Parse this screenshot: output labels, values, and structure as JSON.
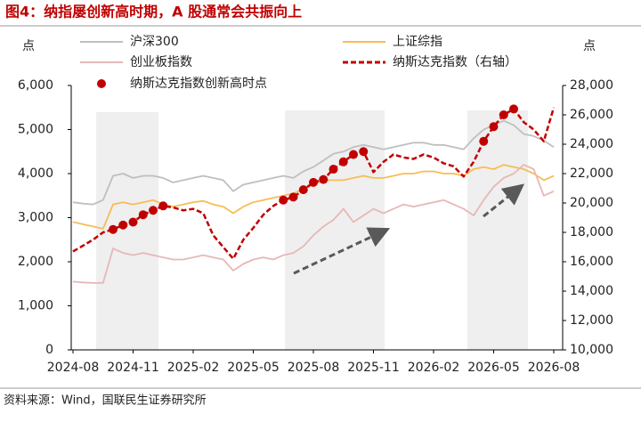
{
  "chart_data": {
    "type": "line",
    "title": "图4：纳指屡创新高时期，A 股通常会共振向上",
    "source": "资料来源：Wind，国联民生证券研究所",
    "y_label": "点",
    "y2_label": "点",
    "categories": [
      "2024-08",
      null,
      null,
      null,
      null,
      null,
      "2024-11",
      null,
      null,
      null,
      null,
      null,
      "2025-02",
      null,
      null,
      null,
      null,
      null,
      "2025-05",
      null,
      null,
      null,
      null,
      null,
      "2025-08",
      null,
      null,
      null,
      null,
      null,
      "2025-11",
      null,
      null,
      null,
      null,
      null,
      "2026-02",
      null,
      null,
      null,
      null,
      null,
      "2026-05",
      null,
      null,
      null,
      null,
      null,
      "2026-08"
    ],
    "ylim": [
      0,
      6000
    ],
    "yticks": [
      0,
      {
        "value": 1000,
        "label": "1,000"
      },
      {
        "value": 2000,
        "label": "2,000"
      },
      {
        "value": 3000,
        "label": "3,000"
      },
      {
        "value": 4000,
        "label": "4,000"
      },
      {
        "value": 5000,
        "label": "5,000"
      },
      {
        "value": 6000,
        "label": "6,000"
      }
    ],
    "y2lim": [
      10000,
      28000
    ],
    "y2ticks": [
      {
        "value": 10000,
        "label": "10,000"
      },
      {
        "value": 12000,
        "label": "12,000"
      },
      {
        "value": 14000,
        "label": "14,000"
      },
      {
        "value": 16000,
        "label": "16,000"
      },
      {
        "value": 18000,
        "label": "18,000"
      },
      {
        "value": 20000,
        "label": "20,000"
      },
      {
        "value": 22000,
        "label": "22,000"
      },
      {
        "value": 24000,
        "label": "24,000"
      },
      {
        "value": 26000,
        "label": "26,000"
      },
      {
        "value": 28000,
        "label": "28,000"
      }
    ],
    "series": [
      {
        "name": "沪深300",
        "color": "#bfbfbf",
        "values": [
          3350,
          3320,
          3300,
          3400,
          3950,
          4000,
          3900,
          3950,
          3950,
          3900,
          3800,
          3850,
          3900,
          3950,
          3900,
          3850,
          3600,
          3750,
          3800,
          3850,
          3900,
          3950,
          3900,
          4050,
          4150,
          4300,
          4450,
          4500,
          4600,
          4650,
          4600,
          4550,
          4600,
          4650,
          4700,
          4700,
          4650,
          4650,
          4600,
          4550,
          4800,
          5000,
          5100,
          5200,
          5100,
          4900,
          4850,
          4750,
          4600
        ]
      },
      {
        "name": "上证综指",
        "color": "#f7bd56",
        "values": [
          2900,
          2850,
          2800,
          2750,
          3300,
          3350,
          3300,
          3350,
          3400,
          3300,
          3250,
          3300,
          3350,
          3380,
          3300,
          3250,
          3100,
          3250,
          3350,
          3400,
          3450,
          3500,
          3550,
          3650,
          3750,
          3850,
          3850,
          3850,
          3900,
          3950,
          3900,
          3900,
          3950,
          4000,
          4000,
          4050,
          4050,
          4000,
          4000,
          3950,
          4100,
          4150,
          4100,
          4200,
          4150,
          4100,
          4000,
          3850,
          3950
        ]
      },
      {
        "name": "创业板指数",
        "color": "#e6b8b7",
        "values": [
          1550,
          1530,
          1520,
          1520,
          2300,
          2200,
          2150,
          2200,
          2150,
          2100,
          2050,
          2050,
          2100,
          2150,
          2100,
          2050,
          1800,
          1950,
          2050,
          2100,
          2050,
          2150,
          2200,
          2350,
          2600,
          2800,
          2950,
          3200,
          2900,
          3050,
          3200,
          3100,
          3200,
          3300,
          3250,
          3300,
          3350,
          3400,
          3300,
          3200,
          3050,
          3400,
          3700,
          3900,
          4000,
          4200,
          4100,
          3500,
          3600
        ]
      },
      {
        "name": "纳斯达克指数（右轴）",
        "color": "#c00000",
        "axis": "y2",
        "dash": true,
        "values": [
          16700,
          17100,
          17500,
          18000,
          18200,
          18500,
          18700,
          19200,
          19500,
          19800,
          19700,
          19500,
          19600,
          19300,
          17800,
          17000,
          16200,
          17500,
          18300,
          19200,
          19800,
          20200,
          20400,
          20900,
          21400,
          21600,
          22300,
          22800,
          23300,
          23500,
          22100,
          22800,
          23300,
          23100,
          23000,
          23300,
          23100,
          22700,
          22500,
          21800,
          22800,
          24200,
          25200,
          26000,
          26400,
          25500,
          25000,
          24200,
          26500
        ]
      },
      {
        "name": "纳斯达克指数创新高时点",
        "color": "#c00000",
        "axis": "y2",
        "kind": "scatter",
        "values": [
          null,
          null,
          null,
          null,
          18200,
          18500,
          18700,
          19200,
          19500,
          19800,
          null,
          null,
          null,
          null,
          null,
          null,
          null,
          null,
          null,
          null,
          null,
          20200,
          20400,
          20900,
          21400,
          21600,
          22300,
          22800,
          23300,
          23500,
          null,
          null,
          null,
          null,
          null,
          null,
          null,
          null,
          null,
          null,
          null,
          24200,
          25200,
          26000,
          26400,
          null,
          null,
          null,
          null
        ]
      }
    ]
  }
}
